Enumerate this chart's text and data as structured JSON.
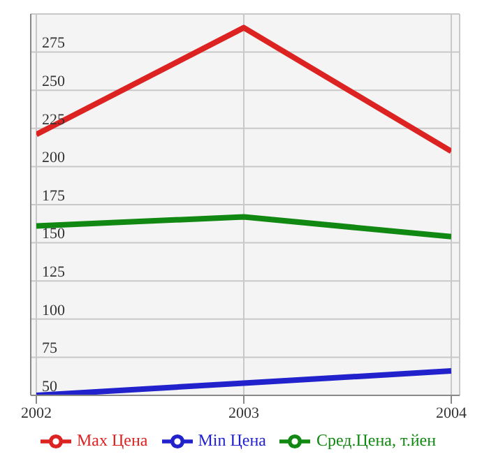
{
  "chart_data": {
    "type": "line",
    "categories": [
      "2002",
      "2003",
      "2004"
    ],
    "series": [
      {
        "name": "Max Цена",
        "color": "#dd2222",
        "values": [
          221,
          291,
          210
        ]
      },
      {
        "name": "Min Цена",
        "color": "#2222cc",
        "values": [
          50,
          58,
          66
        ]
      },
      {
        "name": "Сред.Цена, т.йен",
        "color": "#118811",
        "values": [
          161,
          167,
          154
        ]
      }
    ],
    "ylim": [
      50,
      300
    ],
    "yticks": [
      50,
      75,
      100,
      125,
      150,
      175,
      200,
      225,
      250,
      275
    ],
    "grid": true,
    "legend": "bottom",
    "marker": "none",
    "line_style": "solid"
  }
}
